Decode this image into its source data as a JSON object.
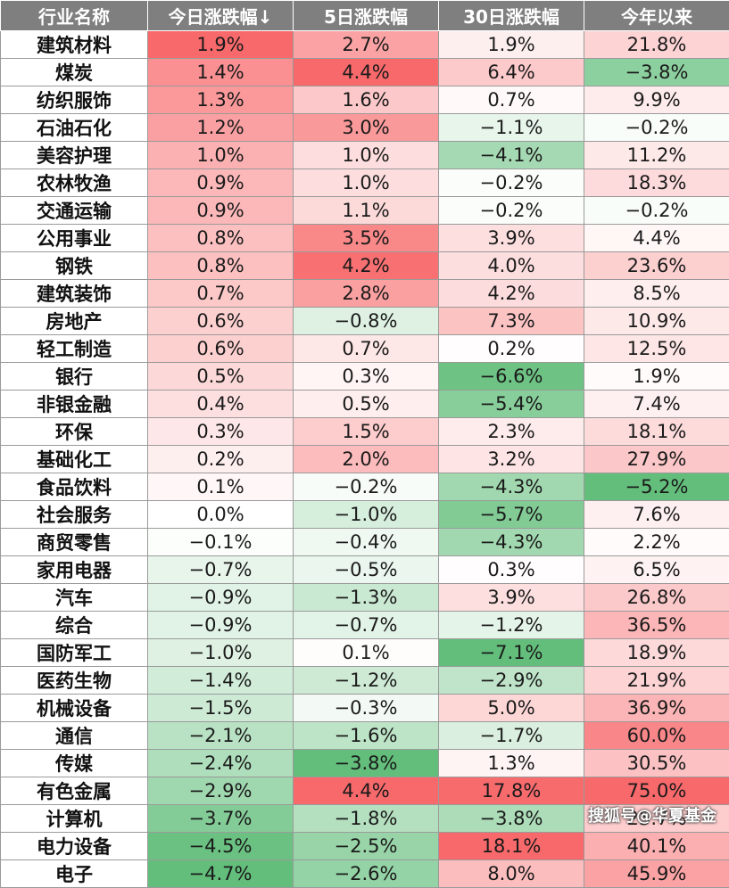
{
  "table": {
    "columns": [
      "行业名称",
      "今日涨跌幅↓",
      "5日涨跌幅",
      "30日涨跌幅",
      "今年以来"
    ],
    "rows": [
      [
        "建筑材料",
        "1.9%",
        "2.7%",
        "1.9%",
        "21.8%"
      ],
      [
        "煤炭",
        "1.4%",
        "4.4%",
        "6.4%",
        "−3.8%"
      ],
      [
        "纺织服饰",
        "1.3%",
        "1.6%",
        "0.7%",
        "9.9%"
      ],
      [
        "石油石化",
        "1.2%",
        "3.0%",
        "−1.1%",
        "−0.2%"
      ],
      [
        "美容护理",
        "1.0%",
        "1.0%",
        "−4.1%",
        "11.2%"
      ],
      [
        "农林牧渔",
        "0.9%",
        "1.0%",
        "−0.2%",
        "18.3%"
      ],
      [
        "交通运输",
        "0.9%",
        "1.1%",
        "−0.2%",
        "−0.2%"
      ],
      [
        "公用事业",
        "0.8%",
        "3.5%",
        "3.9%",
        "4.4%"
      ],
      [
        "钢铁",
        "0.8%",
        "4.2%",
        "4.0%",
        "23.6%"
      ],
      [
        "建筑装饰",
        "0.7%",
        "2.8%",
        "4.2%",
        "8.5%"
      ],
      [
        "房地产",
        "0.6%",
        "−0.8%",
        "7.3%",
        "10.9%"
      ],
      [
        "轻工制造",
        "0.6%",
        "0.7%",
        "0.2%",
        "12.5%"
      ],
      [
        "银行",
        "0.5%",
        "0.3%",
        "−6.6%",
        "1.9%"
      ],
      [
        "非银金融",
        "0.4%",
        "0.5%",
        "−5.4%",
        "7.4%"
      ],
      [
        "环保",
        "0.3%",
        "1.5%",
        "2.3%",
        "18.1%"
      ],
      [
        "基础化工",
        "0.2%",
        "2.0%",
        "3.2%",
        "27.9%"
      ],
      [
        "食品饮料",
        "0.1%",
        "−0.2%",
        "−4.3%",
        "−5.2%"
      ],
      [
        "社会服务",
        "0.0%",
        "−1.0%",
        "−5.7%",
        "7.6%"
      ],
      [
        "商贸零售",
        "−0.1%",
        "−0.4%",
        "−4.3%",
        "2.2%"
      ],
      [
        "家用电器",
        "−0.7%",
        "−0.5%",
        "0.3%",
        "6.5%"
      ],
      [
        "汽车",
        "−0.9%",
        "−1.3%",
        "3.9%",
        "26.8%"
      ],
      [
        "综合",
        "−0.9%",
        "−0.7%",
        "−1.2%",
        "36.5%"
      ],
      [
        "国防军工",
        "−1.0%",
        "0.1%",
        "−7.1%",
        "18.9%"
      ],
      [
        "医药生物",
        "−1.4%",
        "−1.2%",
        "−2.9%",
        "21.9%"
      ],
      [
        "机械设备",
        "−1.5%",
        "−0.3%",
        "5.0%",
        "36.9%"
      ],
      [
        "通信",
        "−2.1%",
        "−1.6%",
        "−1.7%",
        "60.0%"
      ],
      [
        "传媒",
        "−2.4%",
        "−3.8%",
        "1.3%",
        "30.5%"
      ],
      [
        "有色金属",
        "−2.9%",
        "4.4%",
        "17.8%",
        "75.0%"
      ],
      [
        "计算机",
        "−3.7%",
        "−1.8%",
        "−3.8%",
        "25.7%"
      ],
      [
        "电力设备",
        "−4.5%",
        "−2.5%",
        "18.1%",
        "40.1%"
      ],
      [
        "电子",
        "−4.7%",
        "−2.6%",
        "8.0%",
        "45.9%"
      ]
    ],
    "values": [
      [
        1.9,
        2.7,
        1.9,
        21.8
      ],
      [
        1.4,
        4.4,
        6.4,
        -3.8
      ],
      [
        1.3,
        1.6,
        0.7,
        9.9
      ],
      [
        1.2,
        3.0,
        -1.1,
        -0.2
      ],
      [
        1.0,
        1.0,
        -4.1,
        11.2
      ],
      [
        0.9,
        1.0,
        -0.2,
        18.3
      ],
      [
        0.9,
        1.1,
        -0.2,
        -0.2
      ],
      [
        0.8,
        3.5,
        3.9,
        4.4
      ],
      [
        0.8,
        4.2,
        4.0,
        23.6
      ],
      [
        0.7,
        2.8,
        4.2,
        8.5
      ],
      [
        0.6,
        -0.8,
        7.3,
        10.9
      ],
      [
        0.6,
        0.7,
        0.2,
        12.5
      ],
      [
        0.5,
        0.3,
        -6.6,
        1.9
      ],
      [
        0.4,
        0.5,
        -5.4,
        7.4
      ],
      [
        0.3,
        1.5,
        2.3,
        18.1
      ],
      [
        0.2,
        2.0,
        3.2,
        27.9
      ],
      [
        0.1,
        -0.2,
        -4.3,
        -5.2
      ],
      [
        0.0,
        -1.0,
        -5.7,
        7.6
      ],
      [
        -0.1,
        -0.4,
        -4.3,
        2.2
      ],
      [
        -0.7,
        -0.5,
        0.3,
        6.5
      ],
      [
        -0.9,
        -1.3,
        3.9,
        26.8
      ],
      [
        -0.9,
        -0.7,
        -1.2,
        36.5
      ],
      [
        -1.0,
        0.1,
        -7.1,
        18.9
      ],
      [
        -1.4,
        -1.2,
        -2.9,
        21.9
      ],
      [
        -1.5,
        -0.3,
        5.0,
        36.9
      ],
      [
        -2.1,
        -1.6,
        -1.7,
        60.0
      ],
      [
        -2.4,
        -3.8,
        1.3,
        30.5
      ],
      [
        -2.9,
        4.4,
        17.8,
        75.0
      ],
      [
        -3.7,
        -1.8,
        -3.8,
        25.7
      ],
      [
        -4.5,
        -2.5,
        18.1,
        40.1
      ],
      [
        -4.7,
        -2.6,
        8.0,
        45.9
      ]
    ]
  },
  "colors": {
    "header_bg": "#7f7f7f",
    "positive_max": "#f8696b",
    "negative_max": "#63be7b",
    "neutral": "#ffffff"
  },
  "watermark": "搜狐号@华夏基金"
}
